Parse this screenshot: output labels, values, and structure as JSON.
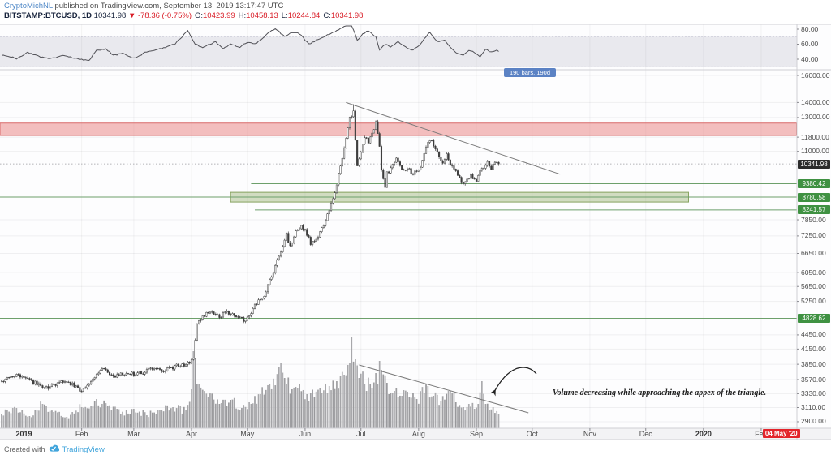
{
  "header": {
    "byline": {
      "author": "CryptoMichNL",
      "rest": " published on TradingView.com, September 13, 2019 13:17:47 UTC"
    },
    "symbol_line": {
      "symbol": "BITSTAMP:BTCUSD, 1D",
      "last": "10341.98",
      "change": "▼ -78.36 (-0.75%)",
      "open_label": "O:",
      "open": "10423.99",
      "high_label": "H:",
      "high": "10458.13",
      "low_label": "L:",
      "low": "10244.84",
      "close_label": "C:",
      "close": "10341.98"
    }
  },
  "range_label": {
    "text": "190 bars, 190d"
  },
  "annotation": {
    "text": "Volume decreasing while approaching the appex of the triangle."
  },
  "footer": {
    "created_with": "Created with",
    "brand": "TradingView"
  },
  "colors": {
    "value_red": "#d91e28",
    "link_blue": "#4c86c6",
    "badge_dark": "#2b2b2b",
    "badge_green": "#3f9142",
    "badge_red": "#e3242b",
    "level_green": "#6da06b",
    "zone_red_fill": "rgba(231,112,112,0.45)",
    "zone_red_border": "#d96a6a",
    "zone_green_fill": "rgba(142,171,102,0.40)",
    "zone_green_border": "#86a35f",
    "range_label_bg": "#5b82c4",
    "trendline_gray": "#7a7a7a",
    "candle_gray": "#3c3c3c",
    "brand_blue": "#41a5dc"
  },
  "time_axis": {
    "months": [
      {
        "label": "2019",
        "day": 12,
        "strong": true
      },
      {
        "label": "Feb",
        "day": 43
      },
      {
        "label": "Mar",
        "day": 71
      },
      {
        "label": "Apr",
        "day": 102
      },
      {
        "label": "May",
        "day": 132
      },
      {
        "label": "Jun",
        "day": 163
      },
      {
        "label": "Jul",
        "day": 193
      },
      {
        "label": "Aug",
        "day": 224
      },
      {
        "label": "Sep",
        "day": 255
      },
      {
        "label": "Oct",
        "day": 285
      },
      {
        "label": "Nov",
        "day": 316
      },
      {
        "label": "Dec",
        "day": 346
      },
      {
        "label": "2020",
        "day": 377,
        "strong": true
      },
      {
        "label": "Feb",
        "day": 408
      }
    ],
    "event_badge": {
      "label": "04 May '20",
      "day": 418
    }
  },
  "price_scale": {
    "badges": [
      {
        "label": "10341.98",
        "price": 10341.98,
        "style": "last"
      },
      {
        "label": "9380.42",
        "price": 9380.42,
        "style": "level"
      },
      {
        "label": "8780.58",
        "price": 8780.58,
        "style": "level"
      },
      {
        "label": "8241.57",
        "price": 8241.57,
        "style": "level"
      },
      {
        "label": "4828.62",
        "price": 4828.62,
        "style": "level"
      }
    ]
  },
  "chart_data": [
    {
      "type": "candlestick",
      "title": "BITSTAMP:BTCUSD 1D",
      "x_unit": "days_since_2018-12-20",
      "y_scale": "log",
      "y_ticks": [
        16000,
        14000,
        13000,
        11800,
        11000,
        7850,
        7250,
        6650,
        6050,
        5650,
        5250,
        4450,
        4150,
        3850,
        3570,
        3330,
        3110,
        2900
      ],
      "last_price": 10341.98,
      "swing_high": 13880,
      "last_candle": {
        "open": 10423.99,
        "high": 10458.13,
        "low": 10244.84,
        "close": 10341.98
      },
      "close_keyframes": [
        [
          2,
          3570
        ],
        [
          8,
          3660
        ],
        [
          17,
          3520
        ],
        [
          25,
          3430
        ],
        [
          32,
          3545
        ],
        [
          38,
          3490
        ],
        [
          43,
          3380
        ],
        [
          48,
          3545
        ],
        [
          54,
          3765
        ],
        [
          60,
          3610
        ],
        [
          67,
          3690
        ],
        [
          73,
          3660
        ],
        [
          80,
          3765
        ],
        [
          86,
          3720
        ],
        [
          93,
          3810
        ],
        [
          99,
          3840
        ],
        [
          103,
          3930
        ],
        [
          105,
          4720
        ],
        [
          108,
          4890
        ],
        [
          113,
          4990
        ],
        [
          117,
          4850
        ],
        [
          121,
          4990
        ],
        [
          126,
          4890
        ],
        [
          130,
          4790
        ],
        [
          133,
          4890
        ],
        [
          136,
          5130
        ],
        [
          141,
          5400
        ],
        [
          145,
          5950
        ],
        [
          150,
          6710
        ],
        [
          153,
          7290
        ],
        [
          155,
          6850
        ],
        [
          158,
          7440
        ],
        [
          161,
          7650
        ],
        [
          163,
          7440
        ],
        [
          166,
          7000
        ],
        [
          169,
          7150
        ],
        [
          173,
          7650
        ],
        [
          176,
          8230
        ],
        [
          179,
          8900
        ],
        [
          181,
          9850
        ],
        [
          184,
          11100
        ],
        [
          186,
          12280
        ],
        [
          187,
          13050
        ],
        [
          189,
          13300
        ],
        [
          190,
          11560
        ],
        [
          191,
          10250
        ],
        [
          193,
          10900
        ],
        [
          195,
          11800
        ],
        [
          197,
          11560
        ],
        [
          200,
          12280
        ],
        [
          201,
          12800
        ],
        [
          203,
          11330
        ],
        [
          204,
          10050
        ],
        [
          206,
          9200
        ],
        [
          207,
          9850
        ],
        [
          210,
          10250
        ],
        [
          212,
          10680
        ],
        [
          214,
          10250
        ],
        [
          216,
          9970
        ],
        [
          218,
          10130
        ],
        [
          221,
          9850
        ],
        [
          223,
          9970
        ],
        [
          225,
          10130
        ],
        [
          227,
          10900
        ],
        [
          229,
          11430
        ],
        [
          231,
          11710
        ],
        [
          233,
          11100
        ],
        [
          235,
          10680
        ],
        [
          237,
          10470
        ],
        [
          239,
          10810
        ],
        [
          241,
          10250
        ],
        [
          244,
          9970
        ],
        [
          246,
          9590
        ],
        [
          248,
          9360
        ],
        [
          250,
          9590
        ],
        [
          252,
          9740
        ],
        [
          255,
          9480
        ],
        [
          257,
          9970
        ],
        [
          259,
          10210
        ],
        [
          261,
          10470
        ],
        [
          263,
          10130
        ],
        [
          265,
          10340
        ],
        [
          266,
          10423.99
        ],
        [
          267,
          10341.98
        ]
      ],
      "levels": [
        {
          "price": 9380.42,
          "from_day": 134
        },
        {
          "price": 8780.58,
          "from_day": 0
        },
        {
          "price": 8241.57,
          "from_day": 136
        },
        {
          "price": 4828.62,
          "from_day": 0
        }
      ],
      "zones": [
        {
          "kind": "resistance",
          "price_from": 11900,
          "price_to": 12650,
          "day_from": 0,
          "day_to": 427
        },
        {
          "kind": "support",
          "price_from": 8570,
          "price_to": 8990,
          "day_from": 123,
          "day_to": 369
        }
      ],
      "trendline": {
        "from": {
          "day": 185,
          "price": 14000
        },
        "to": {
          "day": 300,
          "price": 9830
        }
      }
    },
    {
      "type": "bar",
      "name": "volume",
      "unit": "relative",
      "keyframes": [
        [
          0,
          18
        ],
        [
          8,
          25
        ],
        [
          15,
          15
        ],
        [
          22,
          30
        ],
        [
          28,
          20
        ],
        [
          35,
          14
        ],
        [
          43,
          26
        ],
        [
          50,
          34
        ],
        [
          57,
          28
        ],
        [
          64,
          18
        ],
        [
          71,
          24
        ],
        [
          78,
          16
        ],
        [
          85,
          22
        ],
        [
          92,
          26
        ],
        [
          99,
          22
        ],
        [
          102,
          48
        ],
        [
          103,
          95
        ],
        [
          106,
          55
        ],
        [
          111,
          38
        ],
        [
          117,
          30
        ],
        [
          123,
          35
        ],
        [
          129,
          25
        ],
        [
          134,
          30
        ],
        [
          139,
          42
        ],
        [
          144,
          55
        ],
        [
          149,
          75
        ],
        [
          152,
          62
        ],
        [
          156,
          48
        ],
        [
          160,
          55
        ],
        [
          164,
          42
        ],
        [
          168,
          38
        ],
        [
          172,
          44
        ],
        [
          176,
          52
        ],
        [
          180,
          58
        ],
        [
          184,
          66
        ],
        [
          186,
          78
        ],
        [
          188,
          113
        ],
        [
          190,
          85
        ],
        [
          192,
          62
        ],
        [
          195,
          55
        ],
        [
          199,
          50
        ],
        [
          201,
          68
        ],
        [
          204,
          72
        ],
        [
          207,
          56
        ],
        [
          211,
          46
        ],
        [
          215,
          40
        ],
        [
          219,
          38
        ],
        [
          223,
          36
        ],
        [
          227,
          44
        ],
        [
          229,
          52
        ],
        [
          232,
          40
        ],
        [
          236,
          34
        ],
        [
          240,
          46
        ],
        [
          244,
          32
        ],
        [
          248,
          26
        ],
        [
          251,
          30
        ],
        [
          254,
          24
        ],
        [
          256,
          30
        ],
        [
          258,
          58
        ],
        [
          260,
          30
        ],
        [
          262,
          22
        ],
        [
          264,
          26
        ],
        [
          267,
          18
        ]
      ],
      "spike_days": [
        103,
        188,
        258
      ],
      "trendline": {
        "from": {
          "day": 192,
          "value": 78
        },
        "to": {
          "day": 283,
          "value": 19
        }
      }
    },
    {
      "type": "line",
      "name": "oscillator",
      "band": [
        30,
        70
      ],
      "y_ticks": [
        80,
        60,
        40
      ],
      "points": [
        [
          2,
          45
        ],
        [
          8,
          41
        ],
        [
          14,
          49
        ],
        [
          21,
          43
        ],
        [
          27,
          41
        ],
        [
          34,
          45
        ],
        [
          41,
          40
        ],
        [
          47,
          38
        ],
        [
          51,
          52
        ],
        [
          56,
          54
        ],
        [
          60,
          45
        ],
        [
          65,
          48
        ],
        [
          71,
          41
        ],
        [
          78,
          50
        ],
        [
          86,
          54
        ],
        [
          93,
          60
        ],
        [
          97,
          70
        ],
        [
          100,
          78
        ],
        [
          104,
          60
        ],
        [
          108,
          56
        ],
        [
          115,
          63
        ],
        [
          119,
          54
        ],
        [
          123,
          60
        ],
        [
          128,
          56
        ],
        [
          132,
          63
        ],
        [
          136,
          60
        ],
        [
          143,
          74
        ],
        [
          147,
          81
        ],
        [
          152,
          70
        ],
        [
          156,
          76
        ],
        [
          160,
          74
        ],
        [
          165,
          60
        ],
        [
          169,
          65
        ],
        [
          173,
          70
        ],
        [
          180,
          78
        ],
        [
          184,
          84
        ],
        [
          188,
          87
        ],
        [
          191,
          65
        ],
        [
          194,
          74
        ],
        [
          197,
          78
        ],
        [
          201,
          70
        ],
        [
          203,
          52
        ],
        [
          206,
          60
        ],
        [
          209,
          56
        ],
        [
          213,
          63
        ],
        [
          217,
          56
        ],
        [
          221,
          52
        ],
        [
          225,
          60
        ],
        [
          228,
          70
        ],
        [
          230,
          76
        ],
        [
          234,
          63
        ],
        [
          238,
          65
        ],
        [
          241,
          56
        ],
        [
          244,
          49
        ],
        [
          248,
          45
        ],
        [
          251,
          52
        ],
        [
          254,
          49
        ],
        [
          257,
          43
        ],
        [
          260,
          54
        ],
        [
          263,
          49
        ],
        [
          266,
          52
        ],
        [
          267,
          51
        ]
      ]
    }
  ]
}
